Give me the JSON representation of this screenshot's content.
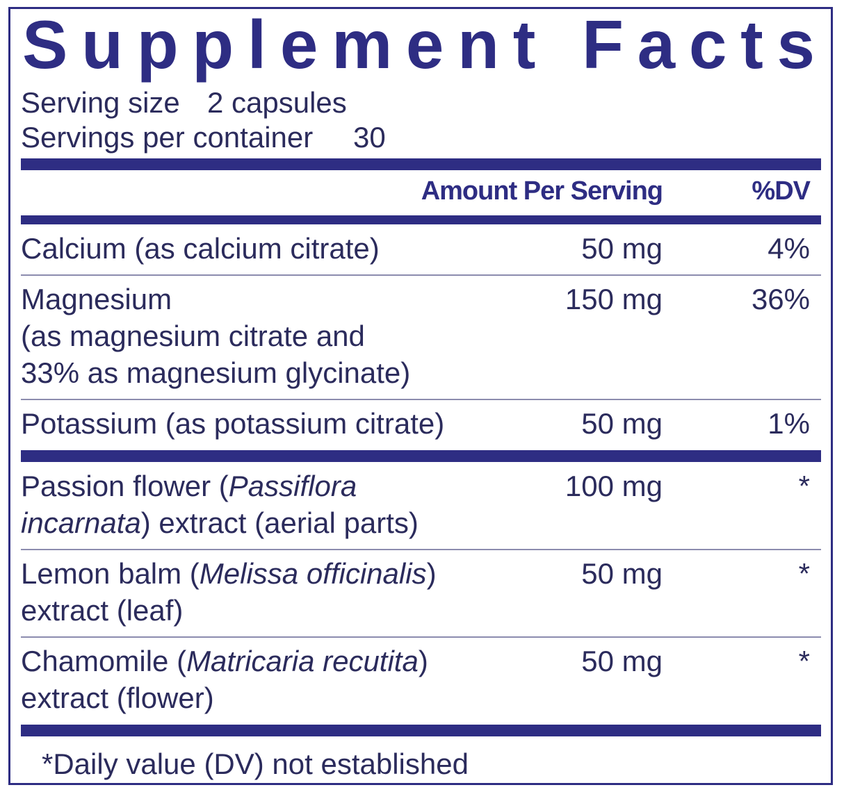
{
  "title": "Supplement Facts",
  "serving": {
    "size_label": "Serving size",
    "size": "2 capsules",
    "per_container_label": "Servings per container",
    "per_container": "30"
  },
  "header": {
    "amount": "Amount Per Serving",
    "dv": "%DV"
  },
  "groups": [
    [
      {
        "lines": [
          [
            {
              "text": "Calcium (as calcium citrate)",
              "italic": false
            }
          ]
        ],
        "amount": "50 mg",
        "dv": "4%"
      },
      {
        "lines": [
          [
            {
              "text": "Magnesium",
              "italic": false
            }
          ],
          [
            {
              "text": "(as magnesium citrate and",
              "italic": false
            }
          ],
          [
            {
              "text": "33% as magnesium glycinate)",
              "italic": false
            }
          ]
        ],
        "amount": "150 mg",
        "dv": "36%"
      },
      {
        "lines": [
          [
            {
              "text": "Potassium (as potassium citrate)",
              "italic": false
            }
          ]
        ],
        "amount": "50 mg",
        "dv": "1%"
      }
    ],
    [
      {
        "lines": [
          [
            {
              "text": "Passion flower (",
              "italic": false
            },
            {
              "text": "Passiflora",
              "italic": true
            }
          ],
          [
            {
              "text": "incarnata",
              "italic": true
            },
            {
              "text": ") extract (aerial parts)",
              "italic": false
            }
          ]
        ],
        "amount": "100 mg",
        "dv": "*"
      },
      {
        "lines": [
          [
            {
              "text": "Lemon balm (",
              "italic": false
            },
            {
              "text": "Melissa officinalis",
              "italic": true
            },
            {
              "text": ")",
              "italic": false
            }
          ],
          [
            {
              "text": "extract (leaf)",
              "italic": false
            }
          ]
        ],
        "amount": "50 mg",
        "dv": "*"
      },
      {
        "lines": [
          [
            {
              "text": "Chamomile (",
              "italic": false
            },
            {
              "text": "Matricaria recutita",
              "italic": true
            },
            {
              "text": ")",
              "italic": false
            }
          ],
          [
            {
              "text": "extract (flower)",
              "italic": false
            }
          ]
        ],
        "amount": "50 mg",
        "dv": "*"
      }
    ]
  ],
  "footnote": "*Daily value (DV) not established"
}
